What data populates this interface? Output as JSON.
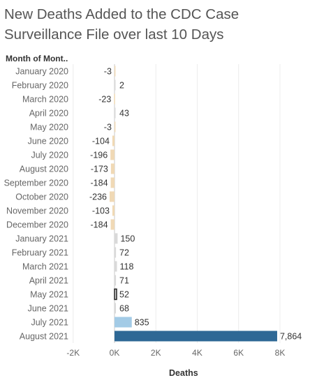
{
  "title_line1": "New Deaths Added to the CDC Case",
  "title_line2": "Surveillance File over last 10 Days",
  "chart_data": {
    "type": "bar",
    "orientation": "horizontal",
    "category_header": "Month of Mont..",
    "xlabel": "Deaths",
    "xlim": [
      -2000,
      8000
    ],
    "xticks": [
      -2000,
      0,
      2000,
      4000,
      6000,
      8000
    ],
    "xtick_labels": [
      "-2K",
      "0K",
      "2K",
      "4K",
      "6K",
      "8K"
    ],
    "grid": true,
    "categories": [
      "January 2020",
      "February 2020",
      "March 2020",
      "April 2020",
      "May 2020",
      "June 2020",
      "July 2020",
      "August 2020",
      "September 2020",
      "October 2020",
      "November 2020",
      "December 2020",
      "January 2021",
      "February 2021",
      "March 2021",
      "April 2021",
      "May 2021",
      "June 2021",
      "July 2021",
      "August 2021"
    ],
    "values": [
      -3,
      2,
      -23,
      43,
      -3,
      -104,
      -196,
      -173,
      -184,
      -236,
      -103,
      -184,
      150,
      72,
      118,
      71,
      52,
      68,
      835,
      7864
    ],
    "value_labels": [
      "-3",
      "2",
      "-23",
      "43",
      "-3",
      "-104",
      "-196",
      "-173",
      "-184",
      "-236",
      "-103",
      "-184",
      "150",
      "72",
      "118",
      "71",
      "52",
      "68",
      "835",
      "7,864"
    ],
    "colors": {
      "negative": "#f0d9b5",
      "small_positive": "#d9d9d9",
      "july_2021": "#a3cbe6",
      "august_2021": "#2e6895",
      "highlight_outline": "#222222",
      "label": "#333333",
      "axis_label": "#666666",
      "grid": "#ececec",
      "zero_line": "#c8c8c8"
    }
  }
}
